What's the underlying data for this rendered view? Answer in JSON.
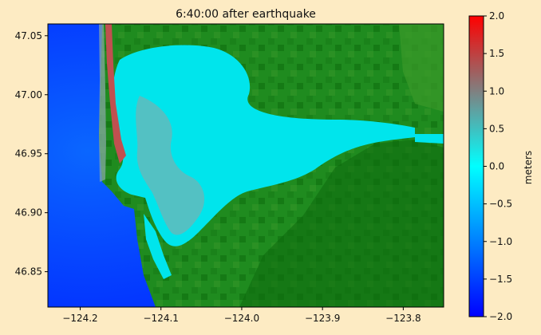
{
  "chart_data": {
    "type": "heatmap",
    "title": "6:40:00 after earthquake",
    "xlim": [
      -124.24,
      -123.75
    ],
    "ylim": [
      46.82,
      47.06
    ],
    "x_ticks": [
      {
        "value": -124.2,
        "label": "−124.2"
      },
      {
        "value": -124.1,
        "label": "−124.1"
      },
      {
        "value": -124.0,
        "label": "−124.0"
      },
      {
        "value": -123.9,
        "label": "−123.9"
      },
      {
        "value": -123.8,
        "label": "−123.8"
      }
    ],
    "y_ticks": [
      {
        "value": 46.85,
        "label": "46.85"
      },
      {
        "value": 46.9,
        "label": "46.90"
      },
      {
        "value": 46.95,
        "label": "46.95"
      },
      {
        "value": 47.0,
        "label": "47.00"
      },
      {
        "value": 47.05,
        "label": "47.05"
      }
    ],
    "colorbar": {
      "label": "meters",
      "range": [
        -2.0,
        2.0
      ],
      "ticks": [
        {
          "value": 2.0,
          "label": "2.0"
        },
        {
          "value": 1.5,
          "label": "1.5"
        },
        {
          "value": 1.0,
          "label": "1.0"
        },
        {
          "value": 0.5,
          "label": "0.5"
        },
        {
          "value": 0.0,
          "label": "0.0"
        },
        {
          "value": -0.5,
          "label": "−0.5"
        },
        {
          "value": -1.0,
          "label": "−1.0"
        },
        {
          "value": -1.5,
          "label": "−1.5"
        },
        {
          "value": -2.0,
          "label": "−2.0"
        }
      ],
      "colors": [
        "#0000ff",
        "#00ffff",
        "#ff0000"
      ]
    },
    "grid": false,
    "colors": {
      "ocean_deep": "#0018ff",
      "ocean_shelf": "#0a66ff",
      "bay_water": "#00e5ec",
      "bay_high": "#8aa8a8",
      "land_low": "#1f8b1f",
      "land_mid": "#157a15",
      "land_high": "#0c6a0c",
      "land_flat": "#3a9a2a",
      "inundated": "#c05050"
    }
  }
}
